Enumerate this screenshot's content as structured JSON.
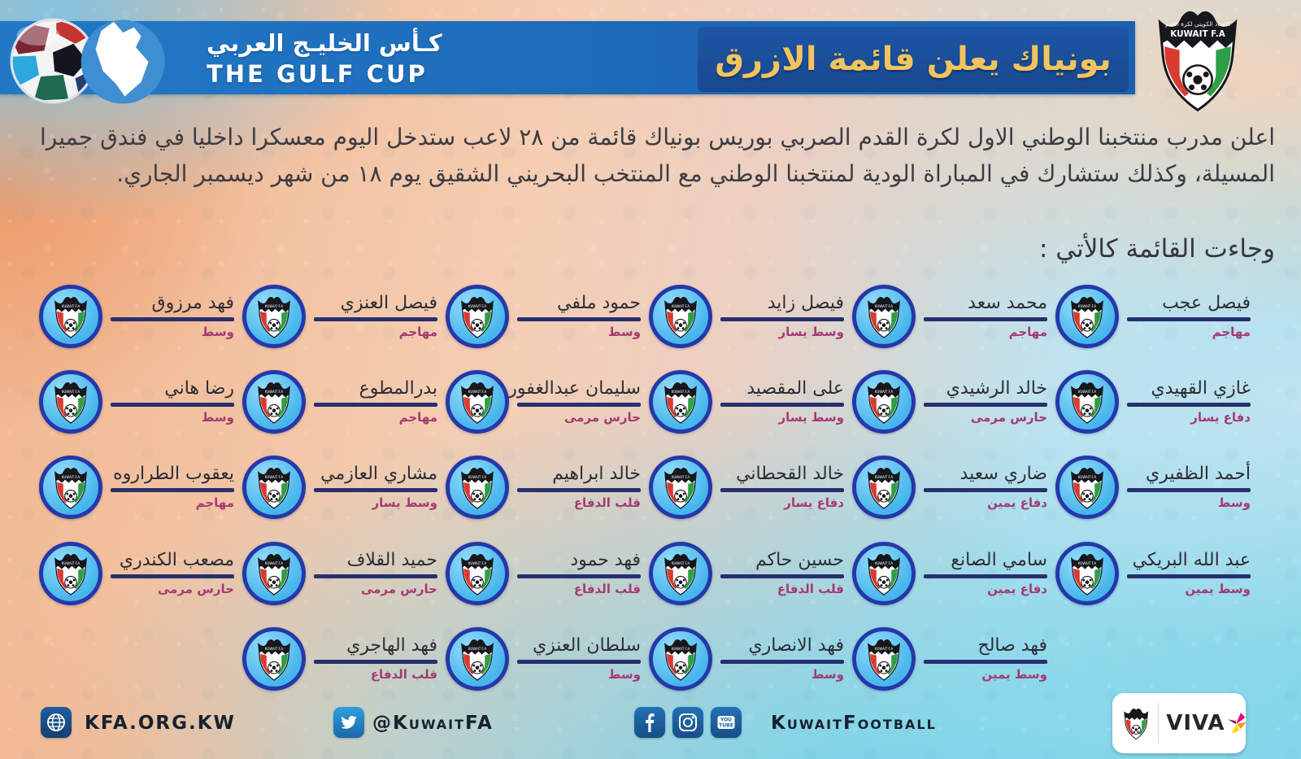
{
  "header": {
    "gulf_cup": {
      "title_ar": "كـأس الخليـج العربي",
      "title_en": "THE GULF CUP"
    },
    "announcement_title": "بونياك يعلن قائمة الازرق",
    "kuwait_fa": {
      "name_ar": "الاتحاد الكويتي لكرة القدم",
      "name_en": "KUWAIT F.A"
    }
  },
  "intro": {
    "paragraph": "اعلن مدرب منتخبنا الوطني الاول لكرة القدم الصربي بوريس بونياك قائمة من ٢٨ لاعب ستدخل اليوم معسكرا داخليا في فندق جميرا المسيلة، وكذلك ستشارك في المباراة الودية لمنتخبنا الوطني مع المنتخب البحريني الشقيق يوم ١٨ من شهر ديسمبر الجاري.",
    "list_heading": "وجاءت القائمة كالأتي :"
  },
  "squad": {
    "rows": [
      [
        {
          "name": "فيصل عجب",
          "position": "مهاجم"
        },
        {
          "name": "محمد سعد",
          "position": "مهاجم"
        },
        {
          "name": "فيصل زايد",
          "position": "وسط يسار"
        },
        {
          "name": "حمود ملفي",
          "position": "وسط"
        },
        {
          "name": "فيصل العنزي",
          "position": "مهاجم"
        },
        {
          "name": "فهد مرزوق",
          "position": "وسط"
        }
      ],
      [
        {
          "name": "غازي القهيدي",
          "position": "دفاع يسار"
        },
        {
          "name": "خالد الرشيدي",
          "position": "حارس مرمى"
        },
        {
          "name": "على المقصيد",
          "position": "وسط يسار"
        },
        {
          "name": "سليمان عبدالغفور",
          "position": "حارس مرمى"
        },
        {
          "name": "بدرالمطوع",
          "position": "مهاجم"
        },
        {
          "name": "رضا هاني",
          "position": "وسط"
        }
      ],
      [
        {
          "name": "أحمد الظفيري",
          "position": "وسط"
        },
        {
          "name": "ضاري سعيد",
          "position": "دفاع يمين"
        },
        {
          "name": "خالد القحطاني",
          "position": "دفاع يسار"
        },
        {
          "name": "خالد ابراهيم",
          "position": "قلب الدفاع"
        },
        {
          "name": "مشاري العازمي",
          "position": "وسط يسار"
        },
        {
          "name": "يعقوب الطراروه",
          "position": "مهاجم"
        }
      ],
      [
        {
          "name": "عبد الله البريكي",
          "position": "وسط يمين"
        },
        {
          "name": "سامي الصانع",
          "position": "دفاع يمين"
        },
        {
          "name": "حسين حاكم",
          "position": "قلب الدفاع"
        },
        {
          "name": "فهد حمود",
          "position": "قلب الدفاع"
        },
        {
          "name": "حميد القلاف",
          "position": "حارس مرمى"
        },
        {
          "name": "مصعب الكندري",
          "position": "حارس مرمى"
        }
      ],
      [
        {
          "name": "فهد صالح",
          "position": "وسط يمين"
        },
        {
          "name": "فهد الانصاري",
          "position": "وسط"
        },
        {
          "name": "سلطان العنزي",
          "position": "وسط"
        },
        {
          "name": "فهد الهاجري",
          "position": "قلب الدفاع"
        }
      ]
    ]
  },
  "footer": {
    "website": "KFA.ORG.KW",
    "twitter_handle": "@KuwaitFA",
    "social_handle": "KuwaitFootball",
    "sponsor": "VIVA"
  },
  "colors": {
    "header_bar_blue": "#1d6cba",
    "title_box_blue": "#1b4f9c",
    "title_gold": "#f1c45f",
    "underline_navy": "#272f6e",
    "position_magenta": "#a53a72",
    "badge_sky_blue": "#55bdf0",
    "badge_ring_blue": "#2637a8",
    "footer_icon_blue": "#1d5fa0"
  }
}
